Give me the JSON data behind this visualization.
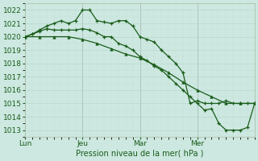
{
  "xlabel": "Pression niveau de la mer( hPa )",
  "ylim": [
    1012.5,
    1022.5
  ],
  "xlim": [
    0,
    96
  ],
  "yticks": [
    1013,
    1014,
    1015,
    1016,
    1017,
    1018,
    1019,
    1020,
    1021,
    1022
  ],
  "xtick_positions": [
    0,
    24,
    48,
    72
  ],
  "xtick_labels": [
    "Lun",
    "Jeu",
    "Mar",
    "Mer"
  ],
  "bg_color": "#cce8e0",
  "grid_color_major": "#b8d8cc",
  "grid_color_minor": "#c8e0d8",
  "vline_color": "#998899",
  "line_color": "#1a5c1a",
  "line1_x": [
    0,
    6,
    12,
    18,
    24,
    30,
    36,
    42,
    48,
    54,
    60,
    66,
    72,
    78,
    84,
    90,
    96
  ],
  "line1_y": [
    1020.0,
    1020.0,
    1020.0,
    1020.0,
    1019.8,
    1019.5,
    1019.1,
    1018.7,
    1018.4,
    1017.9,
    1017.3,
    1016.6,
    1016.0,
    1015.5,
    1015.0,
    1015.0,
    1015.0
  ],
  "line2_x": [
    0,
    3,
    6,
    9,
    12,
    15,
    18,
    21,
    24,
    27,
    30,
    33,
    36,
    39,
    42,
    45,
    48,
    51,
    54,
    57,
    60,
    63,
    66,
    69,
    72,
    75,
    78,
    81,
    84,
    87,
    90,
    93,
    96
  ],
  "line2_y": [
    1020.0,
    1020.2,
    1020.5,
    1020.8,
    1021.0,
    1021.2,
    1021.0,
    1021.2,
    1022.0,
    1022.0,
    1021.2,
    1021.1,
    1021.0,
    1021.2,
    1021.2,
    1020.8,
    1020.0,
    1019.8,
    1019.6,
    1019.0,
    1018.5,
    1018.0,
    1017.3,
    1015.0,
    1015.2,
    1015.0,
    1015.0,
    1015.0,
    1015.2,
    1015.0,
    1015.0,
    1015.0,
    1015.0
  ],
  "line3_x": [
    0,
    3,
    6,
    9,
    12,
    15,
    18,
    21,
    24,
    27,
    30,
    33,
    36,
    39,
    42,
    45,
    48,
    51,
    54,
    57,
    60,
    63,
    66,
    69,
    72,
    75,
    78,
    81,
    84,
    87,
    90,
    93,
    96
  ],
  "line3_y": [
    1020.0,
    1020.2,
    1020.4,
    1020.6,
    1020.5,
    1020.5,
    1020.5,
    1020.5,
    1020.6,
    1020.5,
    1020.3,
    1020.0,
    1020.0,
    1019.5,
    1019.3,
    1019.0,
    1018.5,
    1018.2,
    1017.8,
    1017.5,
    1017.0,
    1016.5,
    1016.0,
    1015.5,
    1015.0,
    1014.5,
    1014.6,
    1013.5,
    1013.0,
    1013.0,
    1013.0,
    1013.2,
    1015.0
  ]
}
